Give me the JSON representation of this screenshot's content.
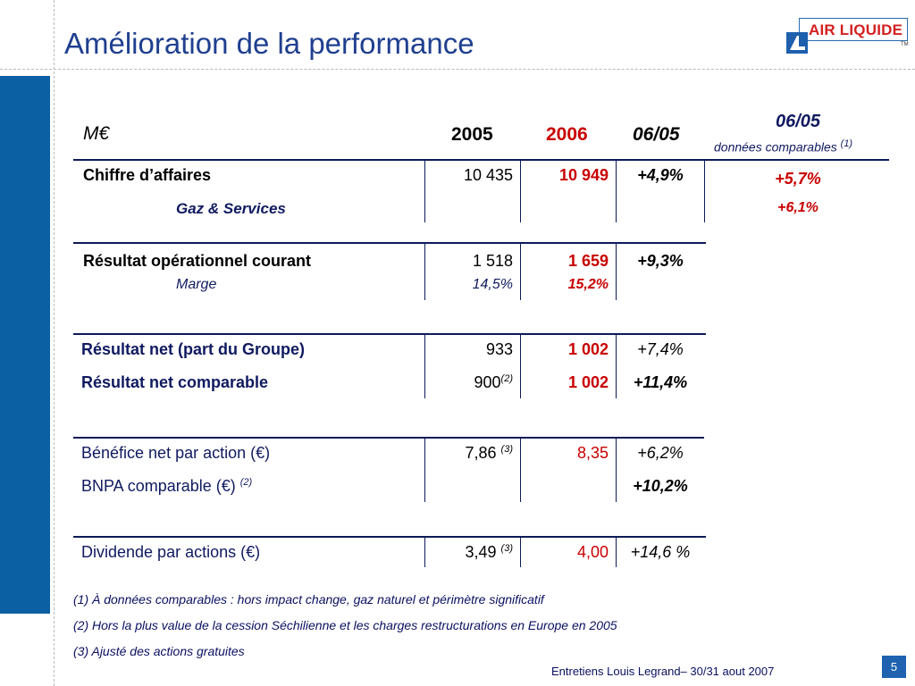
{
  "title": "Amélioration de la performance",
  "logo": {
    "text": "AIR LIQUIDE",
    "tm": "TM"
  },
  "table": {
    "header": {
      "unit": "M€",
      "year1": "2005",
      "year2": "2006",
      "ratio": "06/05",
      "comparable_title": "06/05",
      "comparable_sub": "données comparables",
      "comparable_note": "(1)"
    },
    "sales": {
      "label": "Chiffre d’affaires",
      "v2005": "10 435",
      "v2006": "10 949",
      "ratio": "+4,9%",
      "comparable": "+5,7%",
      "sub_label": "Gaz & Services",
      "sub_comparable": "+6,1%"
    },
    "operating": {
      "label": "Résultat opérationnel courant",
      "v2005": "1 518",
      "v2006": "1 659",
      "ratio": "+9,3%",
      "margin_label": "Marge",
      "margin2005": "14,5%",
      "margin2006": "15,2%"
    },
    "net": {
      "label": "Résultat net (part du Groupe)",
      "v2005": "933",
      "v2006": "1 002",
      "ratio": "+7,4%"
    },
    "net_comparable": {
      "label": "Résultat net comparable",
      "v2005": "900",
      "v2005_note": "(2)",
      "v2006": "1 002",
      "ratio": "+11,4%"
    },
    "eps": {
      "label": "Bénéfice net par action (€)",
      "v2005": "7,86",
      "v2005_note": "(3)",
      "v2006": "8,35",
      "ratio": "+6,2%"
    },
    "eps_comparable": {
      "label": "BNPA comparable (€)",
      "label_note": "(2)",
      "ratio": "+10,2%"
    },
    "dividend": {
      "label": "Dividende par actions (€)",
      "v2005": "3,49",
      "v2005_note": "(3)",
      "v2006": "4,00",
      "ratio": "+14,6 %"
    }
  },
  "footnotes": [
    "(1) À données comparables : hors impact change, gaz naturel et périmètre significatif",
    "(2) Hors la plus value de la cession Séchilienne et les charges restructurations en Europe en 2005",
    "(3) Ajusté des actions gratuites"
  ],
  "footer": "Entretiens Louis Legrand– 30/31 aout 2007",
  "page_number": "5"
}
